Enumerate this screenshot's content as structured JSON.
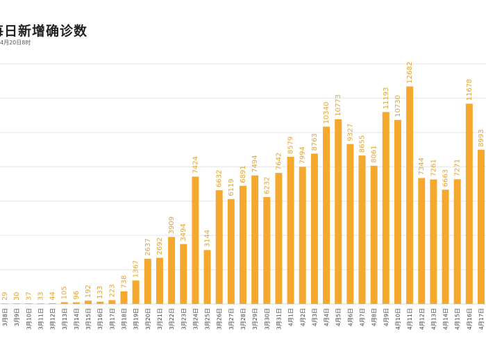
{
  "chart_data": {
    "type": "bar",
    "title": "每日新增确诊数",
    "subtitle": "4月20日8时",
    "colors": {
      "bar": "#F5A82E",
      "label": "#E5A42F"
    },
    "ylim": [
      0,
      14000
    ],
    "grid": true,
    "categories": [
      "3月8日",
      "3月9日",
      "3月10日",
      "3月11日",
      "3月12日",
      "3月13日",
      "3月14日",
      "3月15日",
      "3月16日",
      "3月17日",
      "3月18日",
      "3月19日",
      "3月20日",
      "3月21日",
      "3月22日",
      "3月23日",
      "3月24日",
      "3月25日",
      "3月26日",
      "3月27日",
      "3月28日",
      "3月29日",
      "3月30日",
      "3月31日",
      "4月1日",
      "4月2日",
      "4月3日",
      "4月4日",
      "4月5日",
      "4月6日",
      "4月7日",
      "4月8日",
      "4月9日",
      "4月10日",
      "4月11日",
      "4月12日",
      "4月13日",
      "4月14日",
      "4月15日",
      "4月16日",
      "4月17日"
    ],
    "values": [
      29,
      30,
      37,
      33,
      44,
      105,
      96,
      192,
      133,
      223,
      738,
      1367,
      2637,
      2692,
      3909,
      3494,
      7424,
      3144,
      6632,
      6119,
      6891,
      7494,
      6232,
      7642,
      8579,
      7994,
      8763,
      10340,
      10773,
      9327,
      8655,
      8061,
      11193,
      10730,
      12682,
      7344,
      7261,
      6663,
      7271,
      11678,
      8993
    ]
  }
}
